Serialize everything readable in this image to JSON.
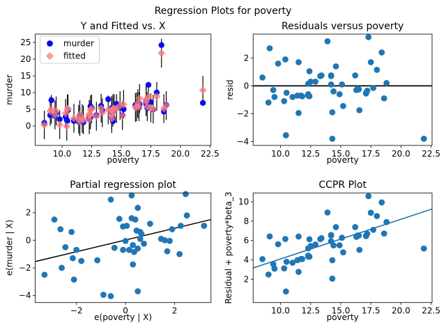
{
  "chart_data": {
    "type": "scatter",
    "suptitle": "Regression Plots for poverty",
    "beta3": 0.41,
    "colors": {
      "murder_marker": "#0b0bee",
      "fitted_marker": "#f87c7c",
      "scatter": "#1f77b4",
      "error_bar": "#000000",
      "zero_line": "#000000",
      "partial_line": "#000000",
      "ccpr_line": "#1f77b4"
    },
    "observations_note": "columns: poverty, murder (blue), fitted (red diamond); resid = murder - fitted",
    "observations": [
      [
        8.5,
        0.9,
        0.3
      ],
      [
        9.0,
        3.2,
        4.4
      ],
      [
        9.1,
        7.7,
        5.0
      ],
      [
        9.4,
        3.0,
        3.3
      ],
      [
        9.5,
        3.7,
        4.5
      ],
      [
        9.8,
        2.0,
        0.4
      ],
      [
        10.3,
        2.7,
        3.8
      ],
      [
        10.4,
        1.8,
        -0.1
      ],
      [
        10.45,
        1.5,
        5.05
      ],
      [
        10.5,
        4.7,
        5.2
      ],
      [
        11.0,
        1.5,
        2.3
      ],
      [
        11.4,
        1.3,
        2.0
      ],
      [
        11.5,
        1.4,
        3.35
      ],
      [
        11.5,
        3.0,
        1.3
      ],
      [
        11.7,
        1.5,
        2.2
      ],
      [
        11.8,
        1.1,
        1.85
      ],
      [
        12.3,
        2.0,
        1.85
      ],
      [
        12.3,
        2.5,
        3.1
      ],
      [
        12.3,
        2.8,
        3.5
      ],
      [
        12.4,
        5.9,
        4.85
      ],
      [
        12.4,
        2.6,
        3.35
      ],
      [
        12.5,
        5.4,
        5.1
      ],
      [
        12.9,
        3.2,
        2.9
      ],
      [
        13.3,
        6.0,
        5.3
      ],
      [
        13.4,
        4.7,
        3.95
      ],
      [
        13.9,
        8.0,
        4.8
      ],
      [
        14.2,
        5.4,
        4.7
      ],
      [
        14.2,
        4.0,
        3.25
      ],
      [
        14.2,
        2.3,
        2.2
      ],
      [
        14.3,
        1.4,
        5.2
      ],
      [
        14.3,
        2.2,
        4.1
      ],
      [
        14.4,
        4.8,
        5.2
      ],
      [
        14.6,
        6.6,
        5.2
      ],
      [
        14.9,
        5.5,
        6.1
      ],
      [
        15.1,
        3.2,
        3.1
      ],
      [
        15.2,
        5.0,
        6.45
      ],
      [
        16.2,
        6.3,
        5.55
      ],
      [
        16.3,
        5.4,
        5.7
      ],
      [
        16.4,
        6.5,
        6.7
      ],
      [
        16.5,
        5.5,
        5.75
      ],
      [
        16.55,
        6.5,
        8.25
      ],
      [
        17.1,
        6.7,
        7.25
      ],
      [
        17.1,
        7.4,
        7.9
      ],
      [
        17.2,
        5.4,
        5.75
      ],
      [
        17.3,
        12.3,
        8.8
      ],
      [
        17.5,
        7.1,
        5.4
      ],
      [
        17.7,
        4.9,
        5.05
      ],
      [
        18.0,
        10.0,
        8.85
      ],
      [
        18.4,
        24.2,
        21.8
      ],
      [
        18.6,
        4.3,
        5.2
      ],
      [
        18.8,
        6.3,
        6.1
      ],
      [
        21.9,
        6.9,
        10.7
      ]
    ],
    "partial_points": [
      [
        -3.3,
        -2.5
      ],
      [
        -2.9,
        1.5
      ],
      [
        -2.65,
        0.8
      ],
      [
        -2.6,
        -2.0
      ],
      [
        -2.45,
        -0.5
      ],
      [
        -2.2,
        0.6
      ],
      [
        -2.15,
        -1.3
      ],
      [
        -2.1,
        -2.85
      ],
      [
        -2.0,
        -0.7
      ],
      [
        -1.8,
        -1.5
      ],
      [
        -1.15,
        -1.45
      ],
      [
        -0.9,
        -3.95
      ],
      [
        -0.6,
        -4.05
      ],
      [
        -0.6,
        2.95
      ],
      [
        -0.45,
        -0.55
      ],
      [
        -0.25,
        1.55
      ],
      [
        -0.1,
        1.0
      ],
      [
        -0.1,
        -0.7
      ],
      [
        0.0,
        -0.05
      ],
      [
        0.05,
        1.05
      ],
      [
        0.15,
        -0.7
      ],
      [
        0.25,
        3.25
      ],
      [
        0.25,
        1.6
      ],
      [
        0.3,
        -0.35
      ],
      [
        0.3,
        -1.75
      ],
      [
        0.35,
        -0.85
      ],
      [
        0.4,
        1.5
      ],
      [
        0.45,
        0.7
      ],
      [
        0.5,
        2.35
      ],
      [
        0.5,
        -0.6
      ],
      [
        0.5,
        -3.7
      ],
      [
        0.6,
        0.6
      ],
      [
        0.6,
        0.1
      ],
      [
        0.65,
        0.45
      ],
      [
        0.75,
        -0.25
      ],
      [
        1.0,
        1.2
      ],
      [
        1.45,
        0.1
      ],
      [
        1.6,
        0.0
      ],
      [
        1.8,
        -0.05
      ],
      [
        1.7,
        -0.8
      ],
      [
        1.9,
        0.8
      ],
      [
        2.2,
        -1.0
      ],
      [
        2.25,
        1.05
      ],
      [
        2.45,
        3.35
      ],
      [
        2.5,
        1.8
      ],
      [
        3.2,
        1.05
      ]
    ],
    "subplots": [
      {
        "key": "fit",
        "title": "Y and Fitted vs. X",
        "xlabel": "poverty",
        "ylabel": "murder",
        "xlim": [
          7.73,
          22.58
        ],
        "ylim": [
          -5.83,
          27.5
        ],
        "xticks": [
          10.0,
          12.5,
          15.0,
          17.5,
          20.0,
          22.5
        ],
        "yticks": [
          0,
          5,
          10,
          15,
          20,
          25
        ],
        "xtickfmt": "f1",
        "ci_halfwidth": 4.3,
        "legend": [
          {
            "label": "murder",
            "marker": "circle"
          },
          {
            "label": "fitted",
            "marker": "diamond"
          }
        ]
      },
      {
        "key": "resid",
        "title": "Residuals versus poverty",
        "xlabel": "poverty",
        "ylabel": "resid",
        "xlim": [
          7.73,
          22.58
        ],
        "ylim": [
          -4.28,
          3.72
        ],
        "xticks": [
          10.0,
          12.5,
          15.0,
          17.5,
          20.0,
          22.5
        ],
        "yticks": [
          -4,
          -2,
          0,
          2
        ],
        "xtickfmt": "f1",
        "hline": 0
      },
      {
        "key": "partial",
        "title": "Partial regression plot",
        "xlabel": "e(poverty | X)",
        "ylabel": "e(murder | X)",
        "xlim": [
          -3.68,
          3.48
        ],
        "ylim": [
          -4.51,
          3.43
        ],
        "xticks": [
          -2,
          0,
          2
        ],
        "yticks": [
          -4,
          -2,
          0,
          2
        ],
        "xtickfmt": "int",
        "line": {
          "slope": 0.425,
          "intercept": 0.02
        }
      },
      {
        "key": "ccpr",
        "title": "CCPR Plot",
        "xlabel": "poverty",
        "ylabel": "Residual + poverty*beta_3",
        "xlim": [
          7.73,
          22.58
        ],
        "ylim": [
          -0.4,
          10.92
        ],
        "xticks": [
          10.0,
          12.5,
          15.0,
          17.5,
          20.0,
          22.5
        ],
        "yticks": [
          2,
          4,
          6,
          8,
          10
        ],
        "xtickfmt": "f1",
        "line": {
          "slope": 0.41,
          "intercept": 0.0
        }
      }
    ]
  }
}
